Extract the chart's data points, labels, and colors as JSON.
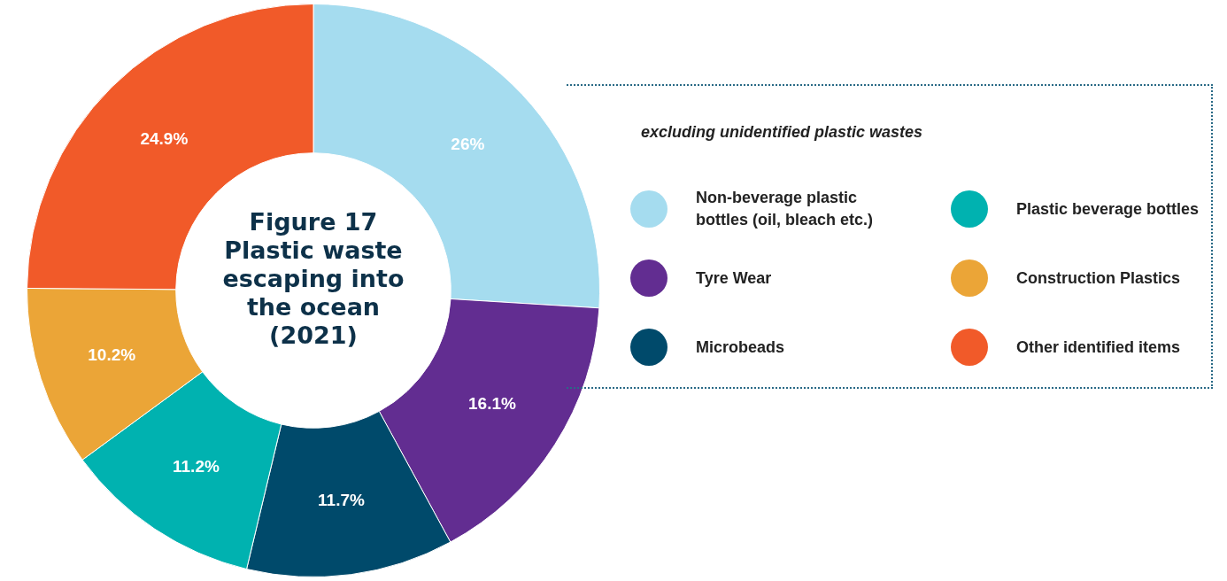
{
  "chart_data": {
    "type": "donut",
    "title": "Figure 17 Plastic waste escaping into the ocean (2021)",
    "subtitle": "excluding unidentified plastic wastes",
    "categories": [
      "Non-beverage plastic bottles (oil, bleach etc.)",
      "Tyre Wear",
      "Microbeads",
      "Plastic beverage bottles",
      "Construction Plastics",
      "Other identified items"
    ],
    "values": [
      26,
      16.1,
      11.7,
      11.2,
      10.2,
      24.9
    ],
    "colors": [
      "#a5dcef",
      "#622d91",
      "#004a6b",
      "#00b2b0",
      "#eba537",
      "#f15a29"
    ],
    "value_labels": [
      "26%",
      "16.1%",
      "11.7%",
      "11.2%",
      "10.2%",
      "24.9%"
    ],
    "legend": "right"
  }
}
